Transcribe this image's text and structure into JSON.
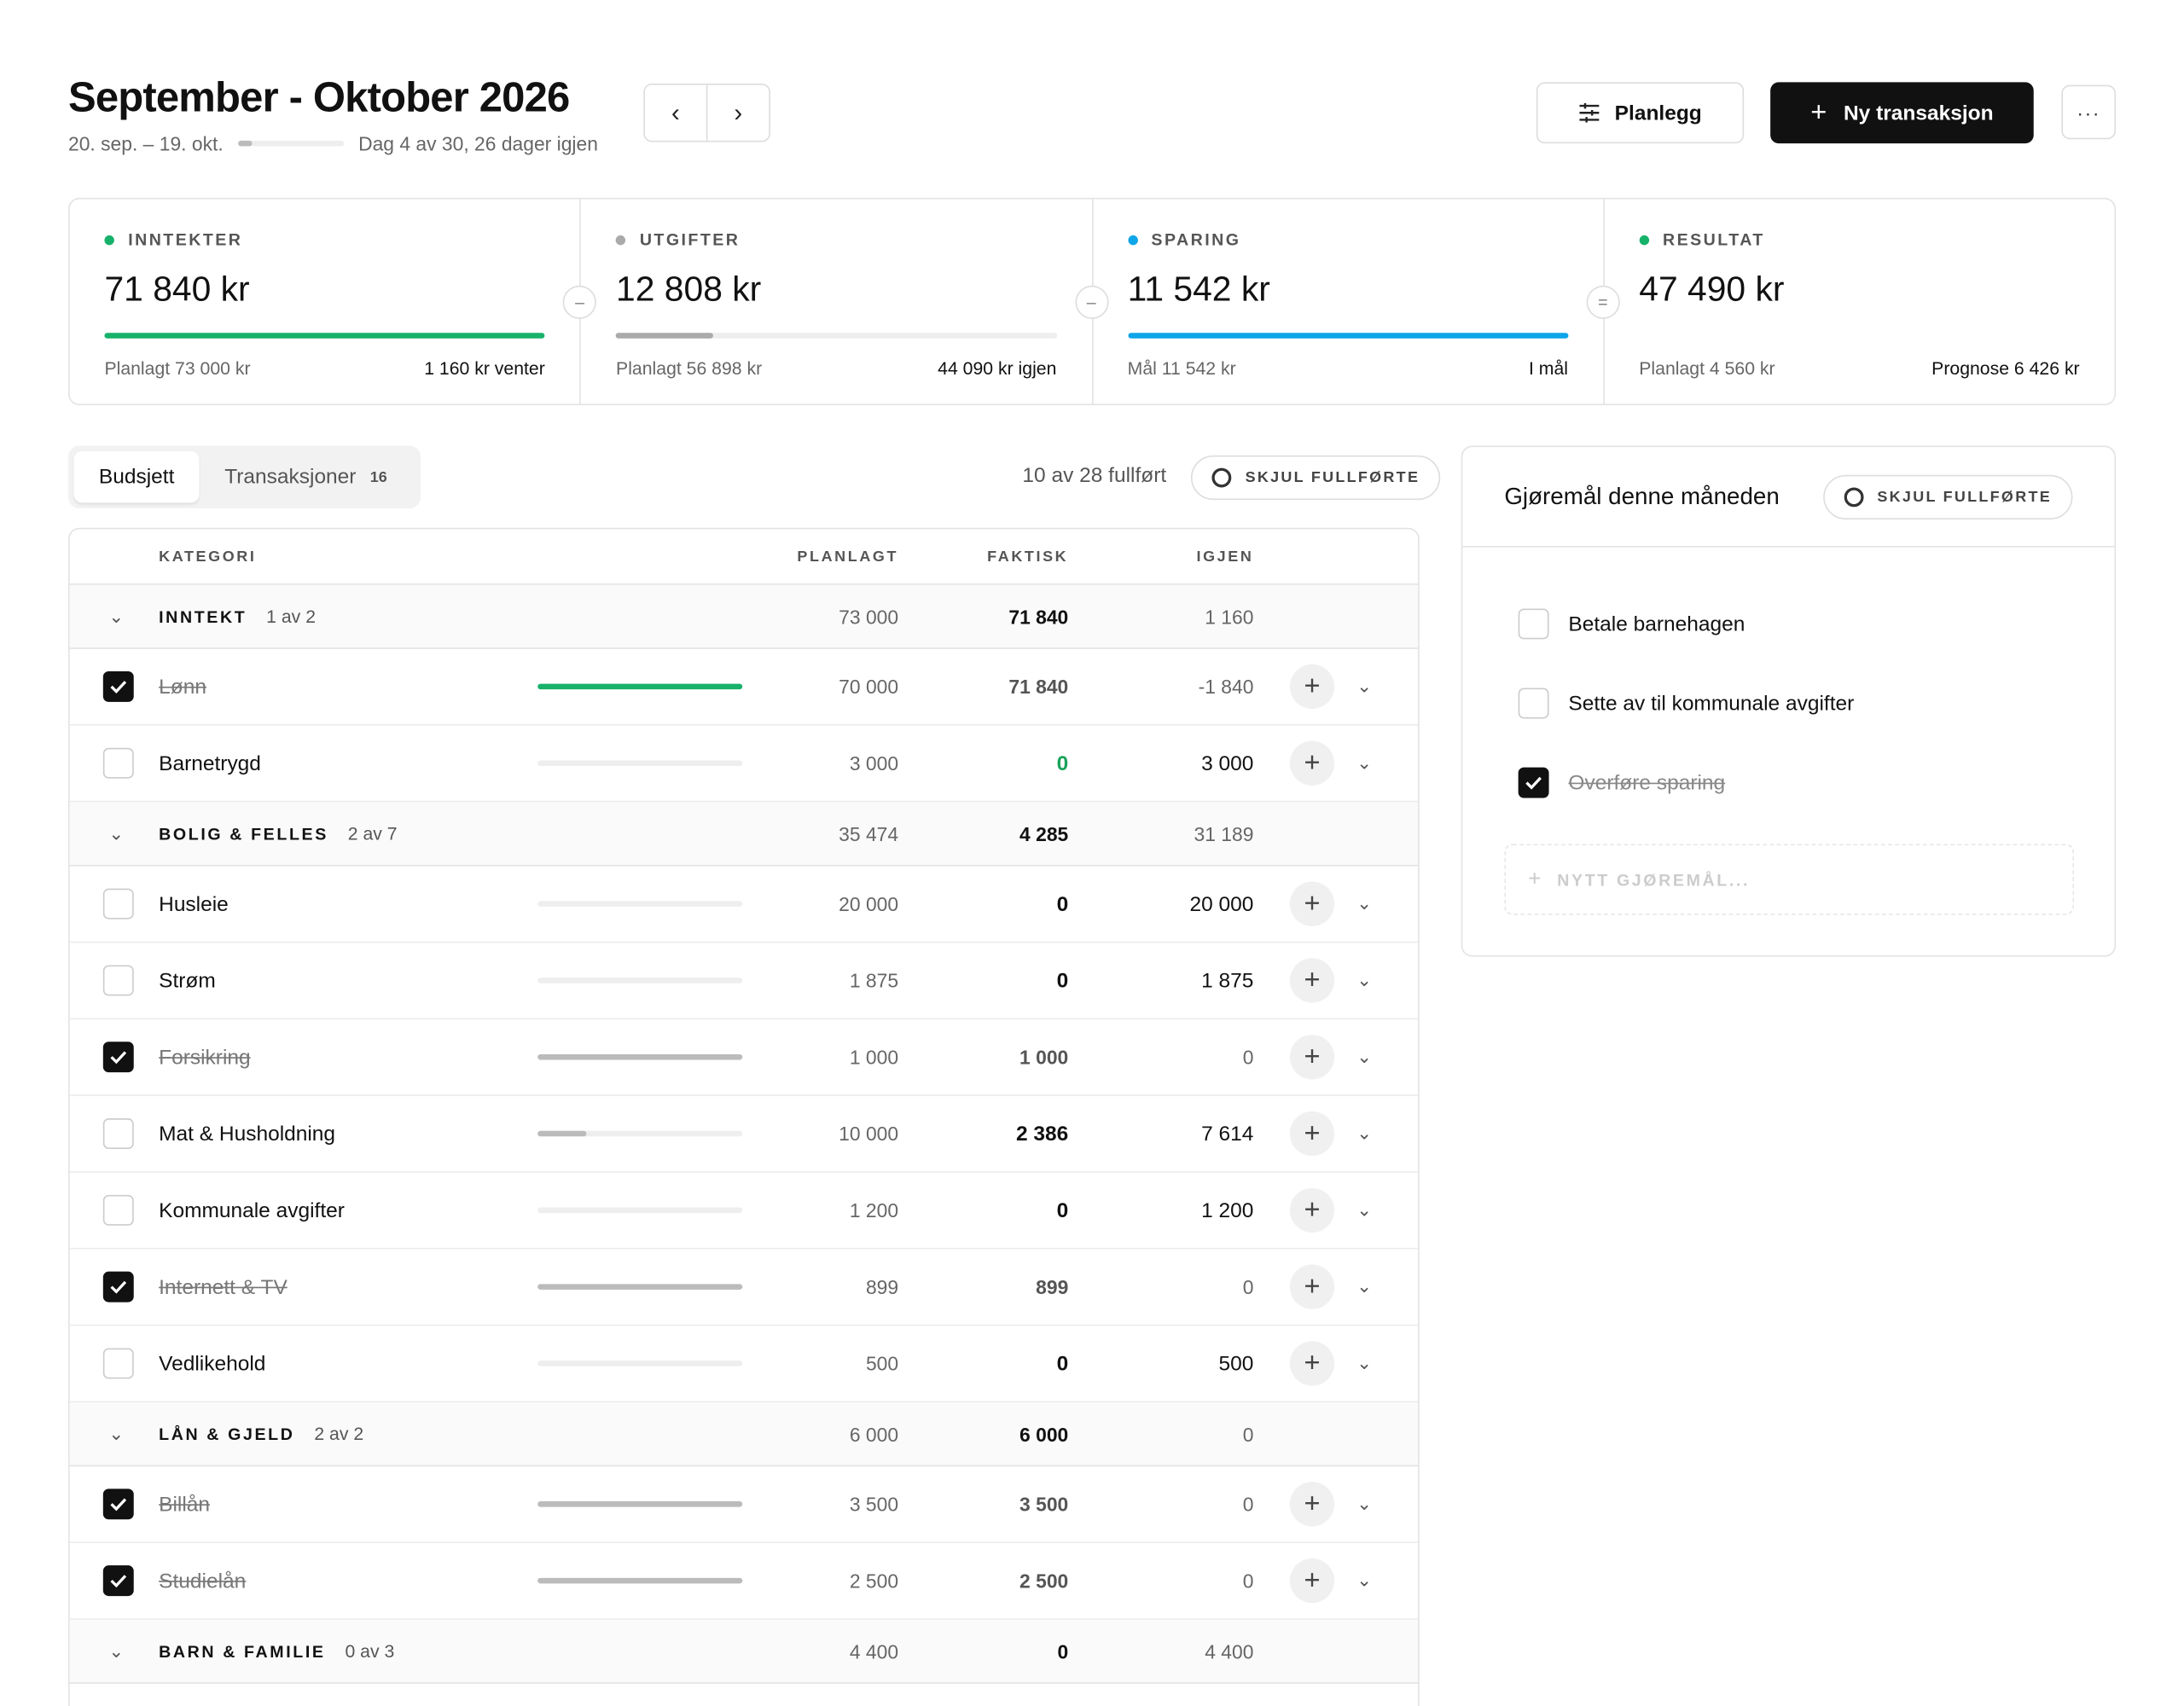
{
  "header": {
    "title": "September - Oktober 2026",
    "range": "20. sep. – 19. okt.",
    "day_info": "Dag 4 av 30, 26 dager igjen",
    "plan_label": "Planlegg",
    "new_label": "Ny transaksjon",
    "more_label": "···",
    "prev": "‹",
    "next": "›",
    "period_progress": 0.13
  },
  "stats": [
    {
      "label": "INNTEKTER",
      "value": "71 840 kr",
      "left": "Planlagt 73 000 kr",
      "right": "1 160 kr venter",
      "color": "#17b26a",
      "fill": 1.0,
      "op": ""
    },
    {
      "label": "UTGIFTER",
      "value": "12 808 kr",
      "left": "Planlagt 56 898 kr",
      "right": "44 090 kr igjen",
      "color": "#aaaaaa",
      "fill": 0.22,
      "op": "–"
    },
    {
      "label": "SPARING",
      "value": "11 542 kr",
      "left": "Mål 11 542 kr",
      "right": "I mål",
      "color": "#0ea5e9",
      "fill": 1.0,
      "op": "–"
    },
    {
      "label": "RESULTAT",
      "value": "47 490 kr",
      "left": "Planlagt 4 560 kr",
      "right": "Prognose 6 426 kr",
      "color": "#17b26a",
      "fill": 0,
      "op": "="
    }
  ],
  "tabs": {
    "budget": "Budsjett",
    "transactions": "Transaksjoner",
    "tx_count": "16"
  },
  "progress_text": "10 av 28 fullført",
  "hide_done": "SKJUL FULLFØRTE",
  "table": {
    "headers": {
      "category": "KATEGORI",
      "planned": "PLANLAGT",
      "actual": "FAKTISK",
      "left": "IGJEN"
    },
    "groups": [
      {
        "name": "INNTEKT",
        "count": "1 av 2",
        "planned": "73 000",
        "actual": "71 840",
        "left": "1 160",
        "rows": [
          {
            "name": "Lønn",
            "checked": true,
            "planned": "70 000",
            "actual": "71 840",
            "left": "-1 840",
            "fill": 1.0,
            "color": "#17b26a",
            "actual_style": "muted"
          },
          {
            "name": "Barnetrygd",
            "checked": false,
            "planned": "3 000",
            "actual": "0",
            "left": "3 000",
            "fill": 0,
            "color": "#bbb",
            "actual_style": "green"
          }
        ]
      },
      {
        "name": "BOLIG & FELLES",
        "count": "2 av 7",
        "planned": "35 474",
        "actual": "4 285",
        "left": "31 189",
        "rows": [
          {
            "name": "Husleie",
            "checked": false,
            "planned": "20 000",
            "actual": "0",
            "left": "20 000",
            "fill": 0,
            "color": "#bbb",
            "actual_style": "bold"
          },
          {
            "name": "Strøm",
            "checked": false,
            "planned": "1 875",
            "actual": "0",
            "left": "1 875",
            "fill": 0,
            "color": "#bbb",
            "actual_style": "bold"
          },
          {
            "name": "Forsikring",
            "checked": true,
            "planned": "1 000",
            "actual": "1 000",
            "left": "0",
            "fill": 1.0,
            "color": "#bbb",
            "actual_style": "muted"
          },
          {
            "name": "Mat & Husholdning",
            "checked": false,
            "planned": "10 000",
            "actual": "2 386",
            "left": "7 614",
            "fill": 0.24,
            "color": "#bbb",
            "actual_style": "bold"
          },
          {
            "name": "Kommunale avgifter",
            "checked": false,
            "planned": "1 200",
            "actual": "0",
            "left": "1 200",
            "fill": 0,
            "color": "#bbb",
            "actual_style": "bold"
          },
          {
            "name": "Internett & TV",
            "checked": true,
            "planned": "899",
            "actual": "899",
            "left": "0",
            "fill": 1.0,
            "color": "#bbb",
            "actual_style": "muted"
          },
          {
            "name": "Vedlikehold",
            "checked": false,
            "planned": "500",
            "actual": "0",
            "left": "500",
            "fill": 0,
            "color": "#bbb",
            "actual_style": "bold"
          }
        ]
      },
      {
        "name": "LÅN & GJELD",
        "count": "2 av 2",
        "planned": "6 000",
        "actual": "6 000",
        "left": "0",
        "rows": [
          {
            "name": "Billån",
            "checked": true,
            "planned": "3 500",
            "actual": "3 500",
            "left": "0",
            "fill": 1.0,
            "color": "#bbb",
            "actual_style": "muted"
          },
          {
            "name": "Studielån",
            "checked": true,
            "planned": "2 500",
            "actual": "2 500",
            "left": "0",
            "fill": 1.0,
            "color": "#bbb",
            "actual_style": "muted"
          }
        ]
      },
      {
        "name": "BARN & FAMILIE",
        "count": "0 av 3",
        "planned": "4 400",
        "actual": "0",
        "left": "4 400",
        "rows": []
      }
    ]
  },
  "todos": {
    "title": "Gjøremål denne måneden",
    "hide_done": "SKJUL FULLFØRTE",
    "new_placeholder": "NYTT GJØREMÅL...",
    "items": [
      {
        "text": "Betale barnehagen",
        "done": false
      },
      {
        "text": "Sette av til kommunale avgifter",
        "done": false
      },
      {
        "text": "Overføre sparing",
        "done": true
      }
    ]
  }
}
